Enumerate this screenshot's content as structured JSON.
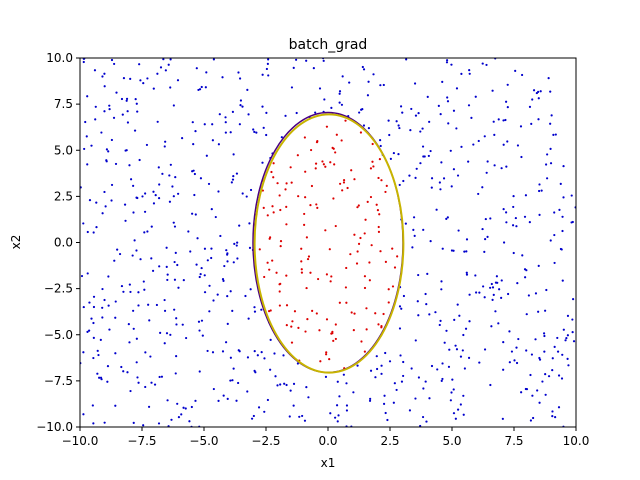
{
  "chart_data": {
    "type": "scatter",
    "title": "batch_grad",
    "xlabel": "x1",
    "ylabel": "x2",
    "xlim": [
      -10,
      10
    ],
    "ylim": [
      -10,
      10
    ],
    "xticks": [
      -10.0,
      -7.5,
      -5.0,
      -2.5,
      0.0,
      2.5,
      5.0,
      7.5,
      10.0
    ],
    "yticks": [
      -10.0,
      -7.5,
      -5.0,
      -2.5,
      0.0,
      2.5,
      5.0,
      7.5,
      10.0
    ],
    "xtick_labels": [
      "−10.0",
      "−7.5",
      "−5.0",
      "−2.5",
      "0.0",
      "2.5",
      "5.0",
      "7.5",
      "10.0"
    ],
    "ytick_labels": [
      "−10.0",
      "−7.5",
      "−5.0",
      "−2.5",
      "0.0",
      "2.5",
      "5.0",
      "7.5",
      "10.0"
    ],
    "grid": false,
    "colors": {
      "outside_points": "#0000cc",
      "inside_points": "#dd0000",
      "boundary_true": "#4b0082",
      "boundary_fit": "#c8b400"
    },
    "boundary": {
      "center": [
        0,
        0
      ],
      "semi_axis_x1": 3.0,
      "semi_axis_x2": 7.0
    },
    "points": {
      "outside_count": 780,
      "inside_count": 170,
      "seed": 7
    }
  }
}
